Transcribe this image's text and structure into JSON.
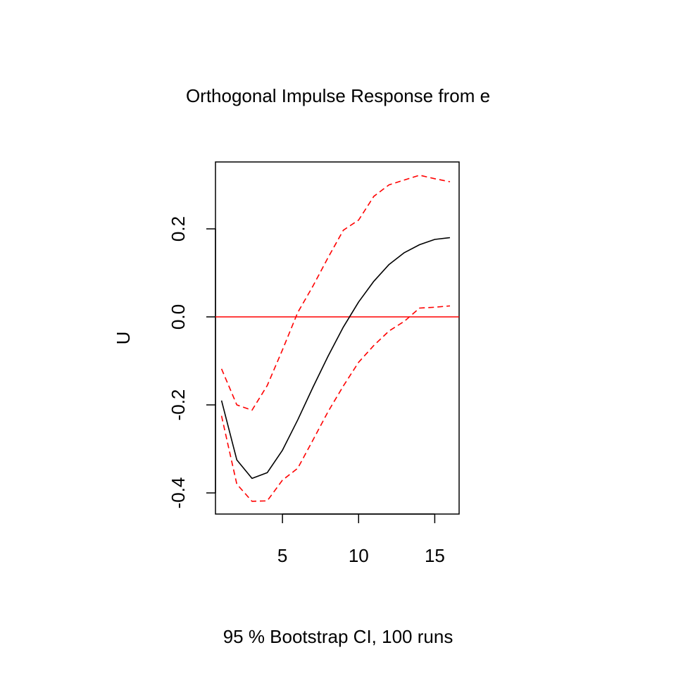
{
  "chart_data": {
    "type": "line",
    "title": "Orthogonal Impulse Response from e",
    "subtitle": "95 % Bootstrap CI,  100 runs",
    "xlabel": "",
    "ylabel": "U",
    "xlim": [
      0.6,
      16.6
    ],
    "ylim": [
      -0.448,
      0.352
    ],
    "x_ticks": [
      5,
      10,
      15
    ],
    "x_tick_labels": [
      "5",
      "10",
      "15"
    ],
    "y_ticks": [
      -0.4,
      -0.2,
      0.0,
      0.2
    ],
    "y_tick_labels": [
      "-0.4",
      "-0.2",
      "0.0",
      "0.2"
    ],
    "grid": false,
    "reference_line": {
      "y": 0,
      "color": "#ff0000"
    },
    "x": [
      1,
      2,
      3,
      4,
      5,
      6,
      7,
      8,
      9,
      10,
      11,
      12,
      13,
      14,
      15,
      16
    ],
    "series": [
      {
        "role": "response",
        "color": "#000000",
        "dash": "solid",
        "values": [
          -0.19,
          -0.325,
          -0.367,
          -0.354,
          -0.303,
          -0.234,
          -0.16,
          -0.089,
          -0.023,
          0.034,
          0.081,
          0.119,
          0.146,
          0.164,
          0.176,
          0.18
        ]
      },
      {
        "role": "upper",
        "color": "#ff0000",
        "dash": "dashed",
        "values": [
          -0.118,
          -0.2,
          -0.212,
          -0.156,
          -0.075,
          0.01,
          0.07,
          0.135,
          0.197,
          0.22,
          0.274,
          0.3,
          0.311,
          0.322,
          0.314,
          0.307
        ]
      },
      {
        "role": "lower",
        "color": "#ff0000",
        "dash": "dashed",
        "values": [
          -0.225,
          -0.38,
          -0.419,
          -0.418,
          -0.371,
          -0.344,
          -0.28,
          -0.215,
          -0.157,
          -0.103,
          -0.065,
          -0.032,
          -0.01,
          0.02,
          0.022,
          0.025
        ]
      }
    ]
  }
}
